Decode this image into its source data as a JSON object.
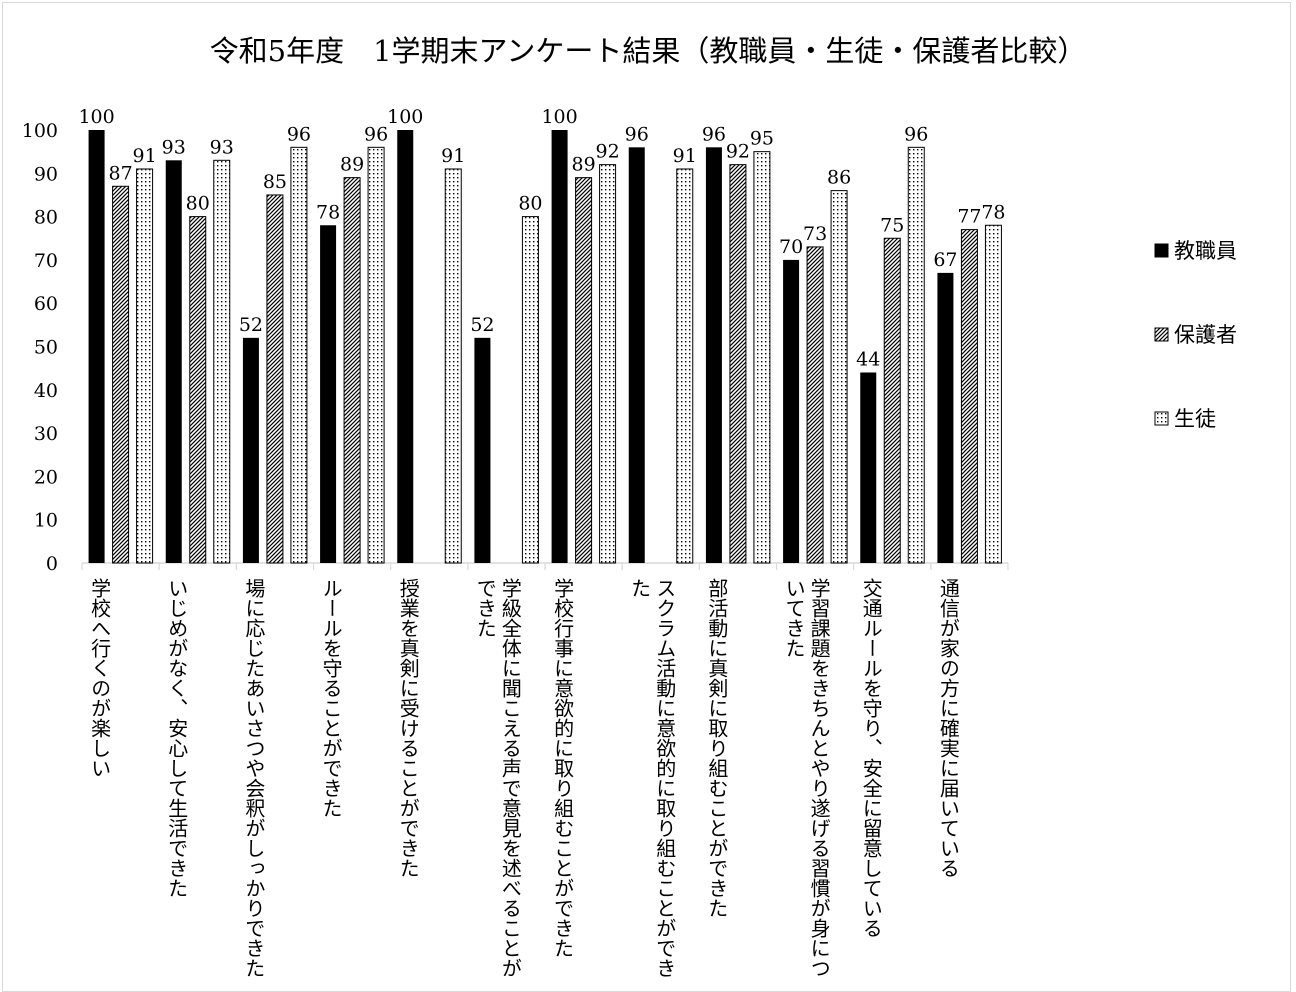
{
  "chart_data": {
    "type": "bar",
    "title": "令和5年度　1学期末アンケート結果（教職員・生徒・保護者比較）",
    "ylim": [
      0,
      100
    ],
    "yticks": [
      0,
      10,
      20,
      30,
      40,
      50,
      60,
      70,
      80,
      90,
      100
    ],
    "grid": false,
    "legend_position": "right",
    "categories": [
      "学校へ行くのが楽しい",
      "いじめがなく、安心して生活できた",
      "場に応じたあいさつや会釈がしっかりできた",
      "ルールを守ることができた",
      "授業を真剣に受けることができた",
      "学級全体に聞こえる声で意見を述べることができた",
      "学校行事に意欲的に取り組むことができた",
      "スクラム活動に意欲的に取り組むことができた",
      "部活動に真剣に取り組むことができた",
      "学習課題をきちんとやり遂げる習慣が身についてきた",
      "交通ルールを守り、安全に留意している",
      "通信が家の方に確実に届いている"
    ],
    "series": [
      {
        "name": "教職員",
        "pattern": "solid",
        "values": [
          100,
          93,
          52,
          78,
          100,
          52,
          100,
          96,
          96,
          70,
          44,
          67
        ]
      },
      {
        "name": "保護者",
        "pattern": "hatch",
        "values": [
          87,
          80,
          85,
          89,
          null,
          null,
          89,
          null,
          92,
          73,
          75,
          77
        ]
      },
      {
        "name": "生徒",
        "pattern": "dots",
        "values": [
          91,
          93,
          96,
          96,
          91,
          80,
          92,
          91,
          95,
          86,
          96,
          78
        ]
      }
    ]
  },
  "colors": {
    "bar_fill": "#000000",
    "axis": "#d9d9d9",
    "background": "#ffffff"
  }
}
